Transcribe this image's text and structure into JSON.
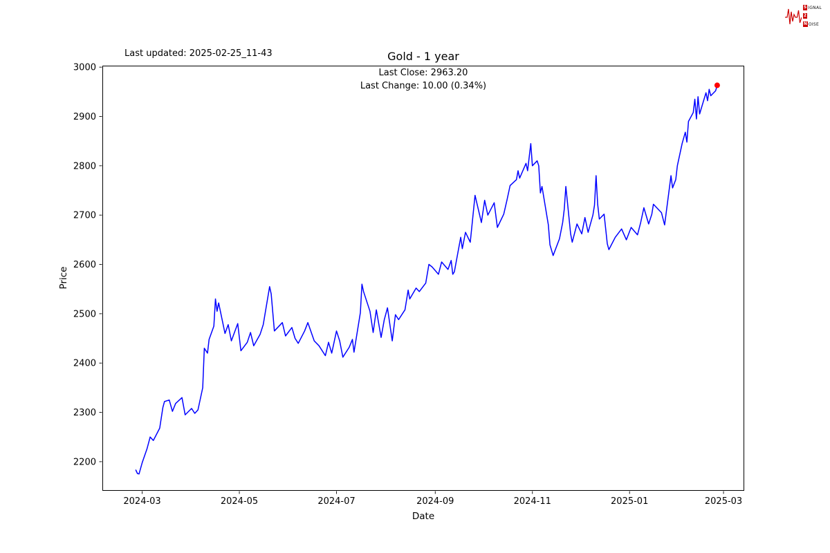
{
  "header": {
    "last_updated": "Last updated: 2025-02-25_11-43"
  },
  "logo": {
    "color": "#cc0000",
    "row1_chip": "S",
    "row1_rest": "IGNAL",
    "row2_chip": "2",
    "row2_rest": "",
    "row3_chip": "N",
    "row3_rest": "OISE"
  },
  "chart_data": {
    "type": "line",
    "title": "Gold - 1 year",
    "annotation": {
      "line1": "Last Close: 2963.20",
      "line2": "Last Change: 10.00 (0.34%)"
    },
    "last_close": 2963.2,
    "last_change_abs": 10.0,
    "last_change_pct": "0.34%",
    "xlabel": "Date",
    "ylabel": "Price",
    "grid": false,
    "legend": "none",
    "line_color": "#0000ff",
    "marker_color": "#ff0000",
    "x_range": [
      "2024-02-05",
      "2025-03-14"
    ],
    "ylim": [
      2141,
      3003
    ],
    "y_ticks": [
      2200,
      2300,
      2400,
      2500,
      2600,
      2700,
      2800,
      2900,
      3000
    ],
    "x_ticks": [
      {
        "date": "2024-03-01",
        "label": "2024-03"
      },
      {
        "date": "2024-05-01",
        "label": "2024-05"
      },
      {
        "date": "2024-07-01",
        "label": "2024-07"
      },
      {
        "date": "2024-09-01",
        "label": "2024-09"
      },
      {
        "date": "2024-11-01",
        "label": "2024-11"
      },
      {
        "date": "2025-01-01",
        "label": "2025-01"
      },
      {
        "date": "2025-03-01",
        "label": "2025-03"
      }
    ],
    "series": [
      {
        "name": "Gold",
        "points": [
          [
            "2024-02-26",
            2183
          ],
          [
            "2024-02-27",
            2176
          ],
          [
            "2024-02-28",
            2175
          ],
          [
            "2024-03-01",
            2198
          ],
          [
            "2024-03-04",
            2226
          ],
          [
            "2024-03-06",
            2250
          ],
          [
            "2024-03-08",
            2243
          ],
          [
            "2024-03-12",
            2268
          ],
          [
            "2024-03-14",
            2310
          ],
          [
            "2024-03-15",
            2322
          ],
          [
            "2024-03-18",
            2325
          ],
          [
            "2024-03-20",
            2302
          ],
          [
            "2024-03-22",
            2318
          ],
          [
            "2024-03-26",
            2330
          ],
          [
            "2024-03-28",
            2295
          ],
          [
            "2024-04-01",
            2308
          ],
          [
            "2024-04-03",
            2298
          ],
          [
            "2024-04-05",
            2305
          ],
          [
            "2024-04-08",
            2350
          ],
          [
            "2024-04-09",
            2430
          ],
          [
            "2024-04-11",
            2420
          ],
          [
            "2024-04-12",
            2448
          ],
          [
            "2024-04-15",
            2475
          ],
          [
            "2024-04-16",
            2530
          ],
          [
            "2024-04-17",
            2505
          ],
          [
            "2024-04-18",
            2522
          ],
          [
            "2024-04-22",
            2460
          ],
          [
            "2024-04-24",
            2478
          ],
          [
            "2024-04-26",
            2445
          ],
          [
            "2024-04-30",
            2480
          ],
          [
            "2024-05-02",
            2425
          ],
          [
            "2024-05-06",
            2442
          ],
          [
            "2024-05-08",
            2462
          ],
          [
            "2024-05-10",
            2435
          ],
          [
            "2024-05-14",
            2458
          ],
          [
            "2024-05-16",
            2478
          ],
          [
            "2024-05-20",
            2555
          ],
          [
            "2024-05-21",
            2540
          ],
          [
            "2024-05-23",
            2465
          ],
          [
            "2024-05-28",
            2482
          ],
          [
            "2024-05-30",
            2455
          ],
          [
            "2024-06-03",
            2472
          ],
          [
            "2024-06-05",
            2450
          ],
          [
            "2024-06-07",
            2440
          ],
          [
            "2024-06-11",
            2465
          ],
          [
            "2024-06-13",
            2482
          ],
          [
            "2024-06-17",
            2445
          ],
          [
            "2024-06-20",
            2435
          ],
          [
            "2024-06-24",
            2415
          ],
          [
            "2024-06-26",
            2442
          ],
          [
            "2024-06-28",
            2420
          ],
          [
            "2024-07-01",
            2465
          ],
          [
            "2024-07-03",
            2445
          ],
          [
            "2024-07-05",
            2412
          ],
          [
            "2024-07-09",
            2432
          ],
          [
            "2024-07-11",
            2448
          ],
          [
            "2024-07-12",
            2422
          ],
          [
            "2024-07-16",
            2502
          ],
          [
            "2024-07-17",
            2560
          ],
          [
            "2024-07-18",
            2545
          ],
          [
            "2024-07-22",
            2505
          ],
          [
            "2024-07-24",
            2462
          ],
          [
            "2024-07-26",
            2508
          ],
          [
            "2024-07-29",
            2452
          ],
          [
            "2024-07-31",
            2488
          ],
          [
            "2024-08-02",
            2512
          ],
          [
            "2024-08-05",
            2445
          ],
          [
            "2024-08-07",
            2498
          ],
          [
            "2024-08-09",
            2488
          ],
          [
            "2024-08-13",
            2508
          ],
          [
            "2024-08-15",
            2548
          ],
          [
            "2024-08-16",
            2530
          ],
          [
            "2024-08-20",
            2552
          ],
          [
            "2024-08-22",
            2545
          ],
          [
            "2024-08-26",
            2562
          ],
          [
            "2024-08-28",
            2600
          ],
          [
            "2024-08-30",
            2595
          ],
          [
            "2024-09-03",
            2580
          ],
          [
            "2024-09-05",
            2605
          ],
          [
            "2024-09-09",
            2590
          ],
          [
            "2024-09-11",
            2608
          ],
          [
            "2024-09-12",
            2580
          ],
          [
            "2024-09-13",
            2585
          ],
          [
            "2024-09-17",
            2655
          ],
          [
            "2024-09-18",
            2632
          ],
          [
            "2024-09-20",
            2665
          ],
          [
            "2024-09-23",
            2645
          ],
          [
            "2024-09-26",
            2740
          ],
          [
            "2024-09-30",
            2685
          ],
          [
            "2024-10-02",
            2730
          ],
          [
            "2024-10-04",
            2700
          ],
          [
            "2024-10-08",
            2725
          ],
          [
            "2024-10-10",
            2675
          ],
          [
            "2024-10-14",
            2702
          ],
          [
            "2024-10-16",
            2730
          ],
          [
            "2024-10-18",
            2760
          ],
          [
            "2024-10-22",
            2772
          ],
          [
            "2024-10-23",
            2790
          ],
          [
            "2024-10-24",
            2775
          ],
          [
            "2024-10-28",
            2805
          ],
          [
            "2024-10-29",
            2790
          ],
          [
            "2024-10-31",
            2845
          ],
          [
            "2024-11-01",
            2800
          ],
          [
            "2024-11-04",
            2810
          ],
          [
            "2024-11-05",
            2800
          ],
          [
            "2024-11-06",
            2745
          ],
          [
            "2024-11-07",
            2758
          ],
          [
            "2024-11-11",
            2680
          ],
          [
            "2024-11-12",
            2640
          ],
          [
            "2024-11-14",
            2618
          ],
          [
            "2024-11-18",
            2652
          ],
          [
            "2024-11-20",
            2685
          ],
          [
            "2024-11-21",
            2712
          ],
          [
            "2024-11-22",
            2758
          ],
          [
            "2024-11-25",
            2662
          ],
          [
            "2024-11-26",
            2645
          ],
          [
            "2024-11-29",
            2682
          ],
          [
            "2024-12-02",
            2662
          ],
          [
            "2024-12-04",
            2695
          ],
          [
            "2024-12-06",
            2665
          ],
          [
            "2024-12-09",
            2700
          ],
          [
            "2024-12-10",
            2720
          ],
          [
            "2024-12-11",
            2780
          ],
          [
            "2024-12-12",
            2722
          ],
          [
            "2024-12-13",
            2692
          ],
          [
            "2024-12-16",
            2702
          ],
          [
            "2024-12-18",
            2642
          ],
          [
            "2024-12-19",
            2630
          ],
          [
            "2024-12-23",
            2655
          ],
          [
            "2024-12-27",
            2672
          ],
          [
            "2024-12-30",
            2650
          ],
          [
            "2025-01-02",
            2675
          ],
          [
            "2025-01-06",
            2660
          ],
          [
            "2025-01-08",
            2685
          ],
          [
            "2025-01-10",
            2715
          ],
          [
            "2025-01-13",
            2682
          ],
          [
            "2025-01-15",
            2702
          ],
          [
            "2025-01-16",
            2722
          ],
          [
            "2025-01-21",
            2705
          ],
          [
            "2025-01-23",
            2680
          ],
          [
            "2025-01-27",
            2780
          ],
          [
            "2025-01-28",
            2755
          ],
          [
            "2025-01-30",
            2772
          ],
          [
            "2025-01-31",
            2800
          ],
          [
            "2025-02-03",
            2845
          ],
          [
            "2025-02-05",
            2868
          ],
          [
            "2025-02-06",
            2848
          ],
          [
            "2025-02-07",
            2890
          ],
          [
            "2025-02-10",
            2908
          ],
          [
            "2025-02-11",
            2935
          ],
          [
            "2025-02-12",
            2895
          ],
          [
            "2025-02-13",
            2940
          ],
          [
            "2025-02-14",
            2905
          ],
          [
            "2025-02-18",
            2948
          ],
          [
            "2025-02-19",
            2932
          ],
          [
            "2025-02-20",
            2955
          ],
          [
            "2025-02-21",
            2942
          ],
          [
            "2025-02-24",
            2952
          ],
          [
            "2025-02-25",
            2963.2
          ]
        ]
      }
    ]
  }
}
